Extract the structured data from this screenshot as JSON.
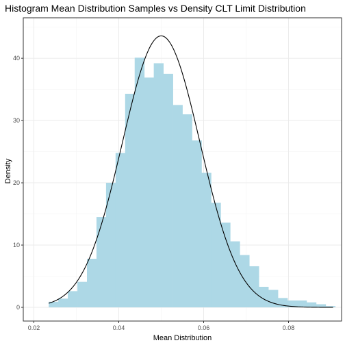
{
  "chart_data": {
    "type": "bar",
    "title": "Histogram Mean Distribution Samples vs Density CLT Limit Distribution",
    "xlabel": "Mean Distribution",
    "ylabel": "Density",
    "xlim": [
      0.0175,
      0.0925
    ],
    "ylim": [
      -2.2,
      46.5
    ],
    "x_ticks": [
      0.02,
      0.04,
      0.06,
      0.08
    ],
    "x_tick_labels": [
      "0.02",
      "0.04",
      "0.06",
      "0.08"
    ],
    "y_ticks": [
      0,
      10,
      20,
      30,
      40
    ],
    "y_tick_labels": [
      "0",
      "10",
      "20",
      "30",
      "40"
    ],
    "grid": true,
    "bin_width": 0.00225,
    "bins": {
      "left_edges": [
        0.0235,
        0.02575,
        0.028,
        0.03025,
        0.0325,
        0.03475,
        0.037,
        0.03925,
        0.0415,
        0.04375,
        0.046,
        0.04825,
        0.0505,
        0.05275,
        0.055,
        0.05725,
        0.0595,
        0.06175,
        0.064,
        0.06625,
        0.0685,
        0.07075,
        0.073,
        0.07525,
        0.0775,
        0.07975,
        0.082,
        0.08425,
        0.0865,
        0.08875
      ],
      "density": [
        0.9,
        1.4,
        2.6,
        4.1,
        7.8,
        14.5,
        20.0,
        24.8,
        34.3,
        40.1,
        36.9,
        39.2,
        37.5,
        32.5,
        31.0,
        26.8,
        21.6,
        16.8,
        13.6,
        10.6,
        8.4,
        6.6,
        3.3,
        2.8,
        1.5,
        1.1,
        1.1,
        0.8,
        0.5,
        0.2
      ]
    },
    "density_curve": {
      "mean": 0.05,
      "peak_density": 43.6,
      "x_range": [
        0.0235,
        0.0905
      ]
    },
    "colors": {
      "bar_fill": "#add8e6",
      "curve": "#000000",
      "panel_border": "#333333",
      "grid_major": "#ebebeb",
      "grid_minor": "#f4f4f4",
      "tick_label": "#4d4d4d"
    }
  }
}
